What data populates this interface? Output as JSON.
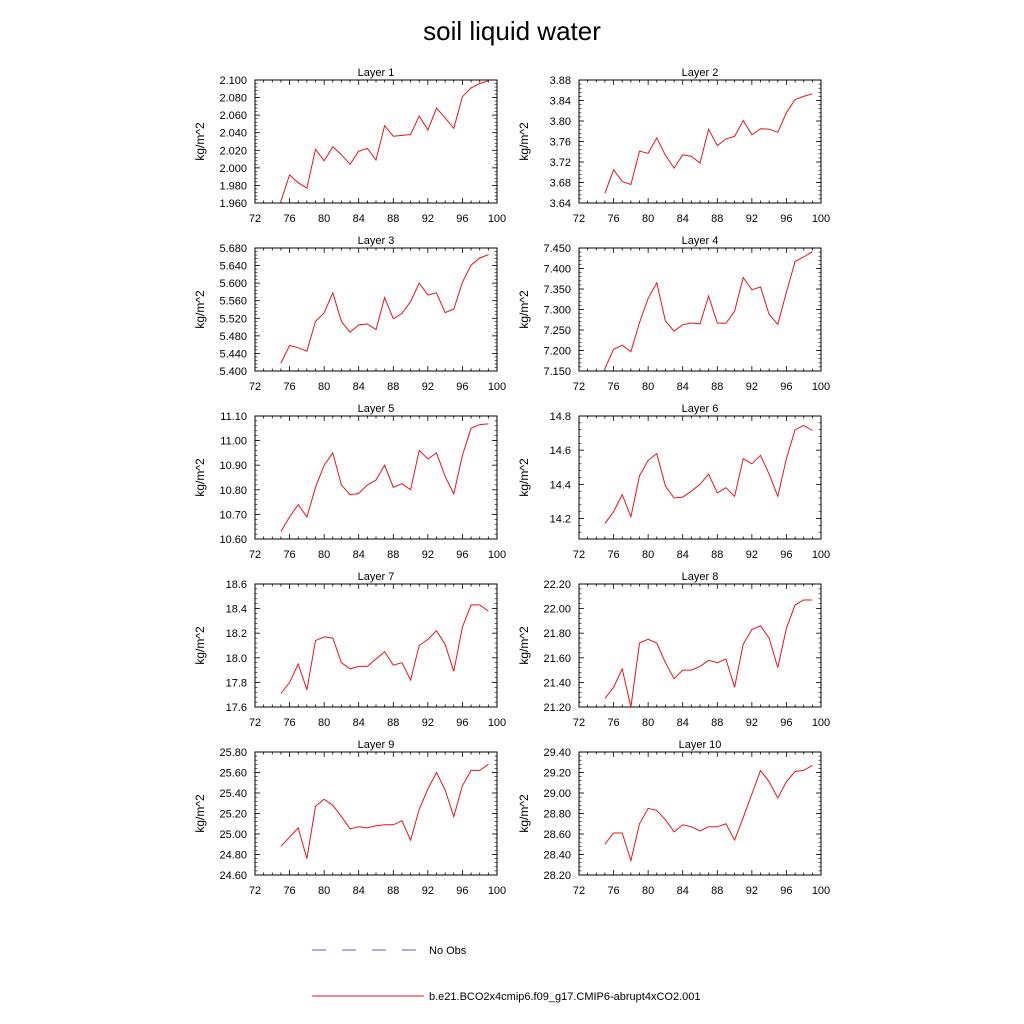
{
  "title": "soil liquid water",
  "legend": {
    "items": [
      {
        "label": "No Obs",
        "color": "#5b5bd6",
        "style": "dashed"
      },
      {
        "label": "b.e21.BCO2x4cmip6.f09_g17.CMIP6-abrupt4xCO2.001",
        "color": "#e8141b",
        "style": "solid"
      }
    ],
    "placement": "bottom-center"
  },
  "chart_data": [
    {
      "type": "line",
      "title": "Layer 1",
      "ylabel": "kg/m^2",
      "xlim": [
        72,
        100
      ],
      "xticks": [
        "72",
        "76",
        "80",
        "84",
        "88",
        "92",
        "96",
        "100"
      ],
      "ylim": [
        1.96,
        2.1
      ],
      "yticks": [
        "1.960",
        "1.980",
        "2.000",
        "2.020",
        "2.040",
        "2.060",
        "2.080",
        "2.100"
      ],
      "series": [
        {
          "color": "#e8141b",
          "x": [
            75,
            76,
            77,
            78,
            79,
            80,
            81,
            82,
            83,
            84,
            85,
            86,
            87,
            88,
            89,
            90,
            91,
            92,
            93,
            94,
            95,
            96,
            97,
            98,
            99
          ],
          "y": [
            1.962,
            1.992,
            1.983,
            1.977,
            2.021,
            2.008,
            2.024,
            2.015,
            2.004,
            2.019,
            2.022,
            2.009,
            2.048,
            2.036,
            2.037,
            2.038,
            2.059,
            2.043,
            2.068,
            2.057,
            2.045,
            2.081,
            2.091,
            2.096,
            2.099
          ]
        }
      ]
    },
    {
      "type": "line",
      "title": "Layer 2",
      "ylabel": "kg/m^2",
      "xlim": [
        72,
        100
      ],
      "xticks": [
        "72",
        "76",
        "80",
        "84",
        "88",
        "92",
        "96",
        "100"
      ],
      "ylim": [
        3.64,
        3.88
      ],
      "yticks": [
        "3.64",
        "3.68",
        "3.72",
        "3.76",
        "3.80",
        "3.84",
        "3.88"
      ],
      "series": [
        {
          "color": "#e8141b",
          "x": [
            75,
            76,
            77,
            78,
            79,
            80,
            81,
            82,
            83,
            84,
            85,
            86,
            87,
            88,
            89,
            90,
            91,
            92,
            93,
            94,
            95,
            96,
            97,
            98,
            99
          ],
          "y": [
            3.659,
            3.705,
            3.682,
            3.676,
            3.741,
            3.737,
            3.767,
            3.733,
            3.708,
            3.734,
            3.731,
            3.718,
            3.784,
            3.752,
            3.765,
            3.77,
            3.801,
            3.773,
            3.785,
            3.784,
            3.778,
            3.816,
            3.842,
            3.848,
            3.853
          ]
        }
      ]
    },
    {
      "type": "line",
      "title": "Layer 3",
      "ylabel": "kg/m^2",
      "xlim": [
        72,
        100
      ],
      "xticks": [
        "72",
        "76",
        "80",
        "84",
        "88",
        "92",
        "96",
        "100"
      ],
      "ylim": [
        5.4,
        5.68
      ],
      "yticks": [
        "5.400",
        "5.440",
        "5.480",
        "5.520",
        "5.560",
        "5.600",
        "5.640",
        "5.680"
      ],
      "series": [
        {
          "color": "#e8141b",
          "x": [
            75,
            76,
            77,
            78,
            79,
            80,
            81,
            82,
            83,
            84,
            85,
            86,
            87,
            88,
            89,
            90,
            91,
            92,
            93,
            94,
            95,
            96,
            97,
            98,
            99
          ],
          "y": [
            5.418,
            5.458,
            5.453,
            5.445,
            5.513,
            5.532,
            5.578,
            5.513,
            5.488,
            5.505,
            5.507,
            5.494,
            5.567,
            5.519,
            5.531,
            5.558,
            5.6,
            5.573,
            5.578,
            5.533,
            5.541,
            5.602,
            5.641,
            5.657,
            5.665
          ]
        }
      ]
    },
    {
      "type": "line",
      "title": "Layer 4",
      "ylabel": "kg/m^2",
      "xlim": [
        72,
        100
      ],
      "xticks": [
        "72",
        "76",
        "80",
        "84",
        "88",
        "92",
        "96",
        "100"
      ],
      "ylim": [
        7.15,
        7.45
      ],
      "yticks": [
        "7.150",
        "7.200",
        "7.250",
        "7.300",
        "7.350",
        "7.400",
        "7.450"
      ],
      "series": [
        {
          "color": "#e8141b",
          "x": [
            75,
            76,
            77,
            78,
            79,
            80,
            81,
            82,
            83,
            84,
            85,
            86,
            87,
            88,
            89,
            90,
            91,
            92,
            93,
            94,
            95,
            96,
            97,
            98,
            99
          ],
          "y": [
            7.156,
            7.203,
            7.213,
            7.197,
            7.268,
            7.327,
            7.365,
            7.272,
            7.247,
            7.263,
            7.267,
            7.265,
            7.333,
            7.267,
            7.266,
            7.296,
            7.378,
            7.348,
            7.355,
            7.288,
            7.264,
            7.342,
            7.417,
            7.428,
            7.441
          ]
        }
      ]
    },
    {
      "type": "line",
      "title": "Layer 5",
      "ylabel": "kg/m^2",
      "xlim": [
        72,
        100
      ],
      "xticks": [
        "72",
        "76",
        "80",
        "84",
        "88",
        "92",
        "96",
        "100"
      ],
      "ylim": [
        10.6,
        11.1
      ],
      "yticks": [
        "10.60",
        "10.70",
        "10.80",
        "10.90",
        "11.00",
        "11.10"
      ],
      "series": [
        {
          "color": "#e8141b",
          "x": [
            75,
            76,
            77,
            78,
            79,
            80,
            81,
            82,
            83,
            84,
            85,
            86,
            87,
            88,
            89,
            90,
            91,
            92,
            93,
            94,
            95,
            96,
            97,
            98,
            99
          ],
          "y": [
            10.63,
            10.69,
            10.74,
            10.69,
            10.81,
            10.9,
            10.95,
            10.82,
            10.78,
            10.785,
            10.82,
            10.84,
            10.9,
            10.81,
            10.825,
            10.8,
            10.96,
            10.925,
            10.95,
            10.855,
            10.783,
            10.94,
            11.05,
            11.065,
            11.068
          ]
        }
      ]
    },
    {
      "type": "line",
      "title": "Layer 6",
      "ylabel": "kg/m^2",
      "xlim": [
        72,
        100
      ],
      "xticks": [
        "72",
        "76",
        "80",
        "84",
        "88",
        "92",
        "96",
        "100"
      ],
      "ylim": [
        14.08,
        14.8
      ],
      "yticks": [
        "14.2",
        "14.4",
        "14.6",
        "14.8"
      ],
      "series": [
        {
          "color": "#e8141b",
          "x": [
            75,
            76,
            77,
            78,
            79,
            80,
            81,
            82,
            83,
            84,
            85,
            86,
            87,
            88,
            89,
            90,
            91,
            92,
            93,
            94,
            95,
            96,
            97,
            98,
            99
          ],
          "y": [
            14.17,
            14.24,
            14.34,
            14.21,
            14.45,
            14.54,
            14.58,
            14.39,
            14.32,
            14.325,
            14.36,
            14.4,
            14.46,
            14.35,
            14.38,
            14.33,
            14.55,
            14.52,
            14.57,
            14.46,
            14.33,
            14.55,
            14.72,
            14.745,
            14.715
          ]
        }
      ]
    },
    {
      "type": "line",
      "title": "Layer 7",
      "ylabel": "kg/m^2",
      "xlim": [
        72,
        100
      ],
      "xticks": [
        "72",
        "76",
        "80",
        "84",
        "88",
        "92",
        "96",
        "100"
      ],
      "ylim": [
        17.6,
        18.6
      ],
      "yticks": [
        "17.6",
        "17.8",
        "18.0",
        "18.2",
        "18.4",
        "18.6"
      ],
      "series": [
        {
          "color": "#e8141b",
          "x": [
            75,
            76,
            77,
            78,
            79,
            80,
            81,
            82,
            83,
            84,
            85,
            86,
            87,
            88,
            89,
            90,
            91,
            92,
            93,
            94,
            95,
            96,
            97,
            98,
            99
          ],
          "y": [
            17.71,
            17.8,
            17.95,
            17.74,
            18.14,
            18.17,
            18.16,
            17.96,
            17.91,
            17.93,
            17.93,
            17.99,
            18.05,
            17.94,
            17.96,
            17.82,
            18.1,
            18.15,
            18.22,
            18.11,
            17.89,
            18.25,
            18.43,
            18.43,
            18.38
          ]
        }
      ]
    },
    {
      "type": "line",
      "title": "Layer 8",
      "ylabel": "kg/m^2",
      "xlim": [
        72,
        100
      ],
      "xticks": [
        "72",
        "76",
        "80",
        "84",
        "88",
        "92",
        "96",
        "100"
      ],
      "ylim": [
        21.2,
        22.2
      ],
      "yticks": [
        "21.20",
        "21.40",
        "21.60",
        "21.80",
        "22.00",
        "22.20"
      ],
      "series": [
        {
          "color": "#e8141b",
          "x": [
            75,
            76,
            77,
            78,
            79,
            80,
            81,
            82,
            83,
            84,
            85,
            86,
            87,
            88,
            89,
            90,
            91,
            92,
            93,
            94,
            95,
            96,
            97,
            98,
            99
          ],
          "y": [
            21.27,
            21.36,
            21.51,
            21.2,
            21.72,
            21.75,
            21.72,
            21.56,
            21.43,
            21.5,
            21.5,
            21.53,
            21.58,
            21.56,
            21.59,
            21.36,
            21.71,
            21.83,
            21.86,
            21.76,
            21.52,
            21.84,
            22.03,
            22.07,
            22.07
          ]
        }
      ]
    },
    {
      "type": "line",
      "title": "Layer 9",
      "ylabel": "kg/m^2",
      "xlim": [
        72,
        100
      ],
      "xticks": [
        "72",
        "76",
        "80",
        "84",
        "88",
        "92",
        "96",
        "100"
      ],
      "ylim": [
        24.6,
        25.8
      ],
      "yticks": [
        "24.60",
        "24.80",
        "25.00",
        "25.20",
        "25.40",
        "25.60",
        "25.80"
      ],
      "series": [
        {
          "color": "#e8141b",
          "x": [
            75,
            76,
            77,
            78,
            79,
            80,
            81,
            82,
            83,
            84,
            85,
            86,
            87,
            88,
            89,
            90,
            91,
            92,
            93,
            94,
            95,
            96,
            97,
            98,
            99
          ],
          "y": [
            24.88,
            24.97,
            25.06,
            24.76,
            25.27,
            25.34,
            25.28,
            25.17,
            25.05,
            25.07,
            25.06,
            25.08,
            25.09,
            25.09,
            25.13,
            24.94,
            25.24,
            25.44,
            25.6,
            25.43,
            25.17,
            25.47,
            25.62,
            25.62,
            25.68
          ]
        }
      ]
    },
    {
      "type": "line",
      "title": "Layer 10",
      "ylabel": "kg/m^2",
      "xlim": [
        72,
        100
      ],
      "xticks": [
        "72",
        "76",
        "80",
        "84",
        "88",
        "92",
        "96",
        "100"
      ],
      "ylim": [
        28.2,
        29.4
      ],
      "yticks": [
        "28.20",
        "28.40",
        "28.60",
        "28.80",
        "29.00",
        "29.20",
        "29.40"
      ],
      "series": [
        {
          "color": "#e8141b",
          "x": [
            75,
            76,
            77,
            78,
            79,
            80,
            81,
            82,
            83,
            84,
            85,
            86,
            87,
            88,
            89,
            90,
            91,
            92,
            93,
            94,
            95,
            96,
            97,
            98,
            99
          ],
          "y": [
            28.5,
            28.61,
            28.61,
            28.34,
            28.7,
            28.85,
            28.83,
            28.74,
            28.62,
            28.69,
            28.67,
            28.63,
            28.67,
            28.67,
            28.7,
            28.54,
            28.76,
            28.99,
            29.22,
            29.11,
            28.95,
            29.11,
            29.21,
            29.22,
            29.27
          ]
        }
      ]
    }
  ]
}
